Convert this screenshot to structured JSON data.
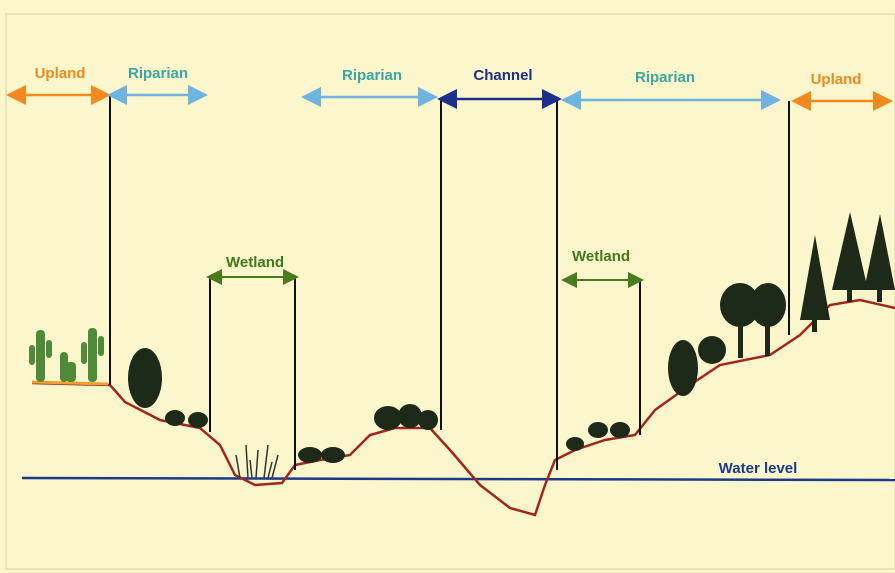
{
  "zones": [
    {
      "label": "Upland"
    },
    {
      "label": "Riparian"
    },
    {
      "label": "Riparian"
    },
    {
      "label": "Channel"
    },
    {
      "label": "Riparian"
    },
    {
      "label": "Upland"
    },
    {
      "label": "Wetland"
    },
    {
      "label": "Wetland"
    }
  ],
  "water_level": {
    "label": "Water level"
  }
}
